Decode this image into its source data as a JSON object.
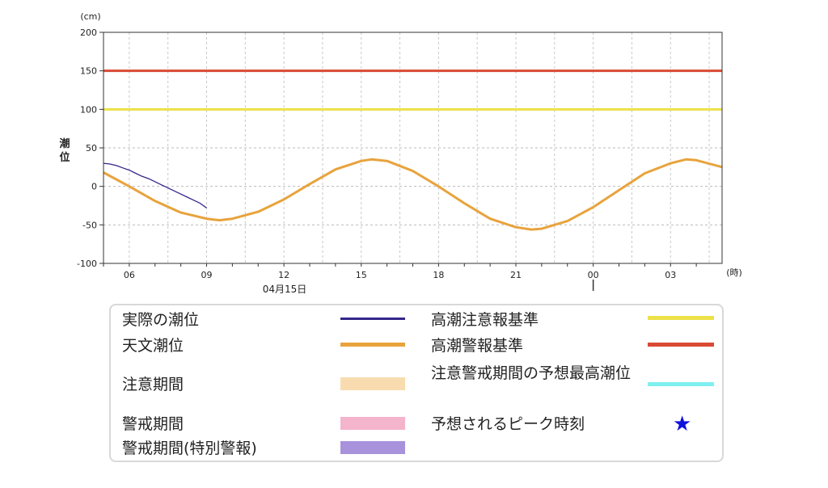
{
  "chart_data": {
    "type": "line",
    "y_unit": "(cm)",
    "x_unit": "(時)",
    "ylabel": "潮位",
    "ylim": [
      -100,
      200
    ],
    "y_ticks": [
      "200",
      "150",
      "100",
      "50",
      "0",
      "-50",
      "-100"
    ],
    "x_range_hours": [
      5,
      29
    ],
    "x_ticks": [
      {
        "hour": 6,
        "label": "06"
      },
      {
        "hour": 9,
        "label": "09"
      },
      {
        "hour": 12,
        "label": "12"
      },
      {
        "hour": 15,
        "label": "15"
      },
      {
        "hour": 18,
        "label": "18"
      },
      {
        "hour": 21,
        "label": "21"
      },
      {
        "hour": 24,
        "label": "00"
      },
      {
        "hour": 27,
        "label": "03"
      }
    ],
    "date_label": "04月15日",
    "date_marker_hour": 24,
    "grid": true,
    "series": [
      {
        "name": "実際の潮位",
        "color": "#33268a",
        "points": [
          [
            5.0,
            30
          ],
          [
            5.25,
            29
          ],
          [
            5.5,
            27
          ],
          [
            5.75,
            24
          ],
          [
            6.0,
            21
          ],
          [
            6.25,
            17
          ],
          [
            6.5,
            13
          ],
          [
            6.75,
            10
          ],
          [
            7.0,
            6
          ],
          [
            7.25,
            2
          ],
          [
            7.5,
            -2
          ],
          [
            7.75,
            -6
          ],
          [
            8.0,
            -10
          ],
          [
            8.25,
            -14
          ],
          [
            8.5,
            -18
          ],
          [
            8.75,
            -22
          ],
          [
            9.0,
            -28
          ]
        ]
      },
      {
        "name": "天文潮位",
        "color": "#e8a33c",
        "points": [
          [
            5.0,
            18
          ],
          [
            6.0,
            0
          ],
          [
            7.0,
            -19
          ],
          [
            8.0,
            -34
          ],
          [
            9.0,
            -42
          ],
          [
            9.5,
            -44
          ],
          [
            10.0,
            -42
          ],
          [
            11.0,
            -33
          ],
          [
            12.0,
            -17
          ],
          [
            13.0,
            3
          ],
          [
            14.0,
            22
          ],
          [
            15.0,
            33
          ],
          [
            15.4,
            35
          ],
          [
            16.0,
            33
          ],
          [
            17.0,
            20
          ],
          [
            18.0,
            0
          ],
          [
            19.0,
            -22
          ],
          [
            20.0,
            -42
          ],
          [
            21.0,
            -53
          ],
          [
            21.6,
            -56
          ],
          [
            22.0,
            -55
          ],
          [
            23.0,
            -45
          ],
          [
            24.0,
            -27
          ],
          [
            25.0,
            -5
          ],
          [
            26.0,
            17
          ],
          [
            27.0,
            30
          ],
          [
            27.6,
            35
          ],
          [
            28.0,
            34
          ],
          [
            29.0,
            25
          ]
        ]
      }
    ],
    "thresholds": [
      {
        "name": "高潮注意報基準",
        "value": 100,
        "color": "#ece147"
      },
      {
        "name": "高潮警報基準",
        "value": 150,
        "color": "#d94a34"
      }
    ]
  },
  "legend": [
    {
      "label": "実際の潮位",
      "kind": "line",
      "color": "#33268a"
    },
    {
      "label": "天文潮位",
      "kind": "line",
      "color": "#e8a33c"
    },
    {
      "label": "注意期間",
      "kind": "box",
      "color": "#f8dcb0"
    },
    {
      "label": "警戒期間",
      "kind": "box",
      "color": "#f4b4cc"
    },
    {
      "label": "警戒期間(特別警報)",
      "kind": "box",
      "color": "#a892dc"
    },
    {
      "label": "高潮注意報基準",
      "kind": "line",
      "color": "#ece147"
    },
    {
      "label": "高潮警報基準",
      "kind": "line",
      "color": "#d94a34"
    },
    {
      "label": "注意警戒期間の予想最高潮位",
      "kind": "line",
      "color": "#7ff0f0"
    },
    {
      "label": "予想されるピーク時刻",
      "kind": "star",
      "color": "#1010dd",
      "icon": "star-icon"
    }
  ]
}
